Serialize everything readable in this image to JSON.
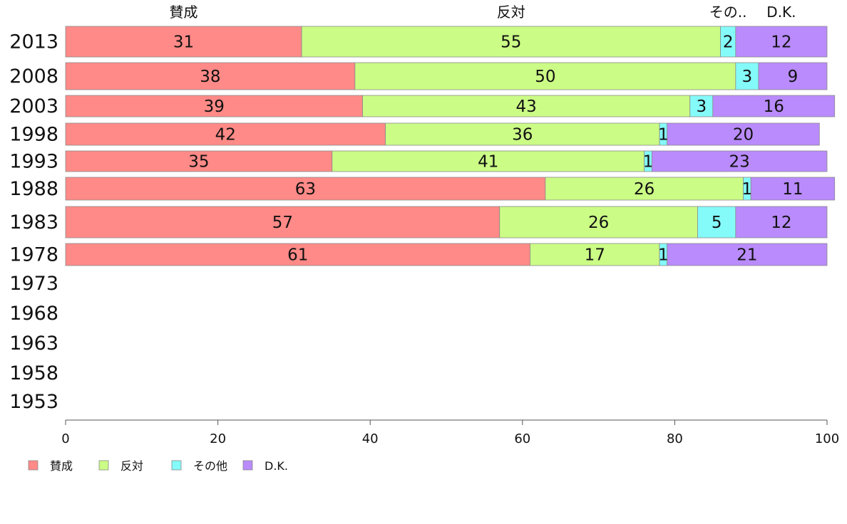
{
  "chart_data": {
    "type": "bar",
    "orientation": "horizontal",
    "stacked": true,
    "categories": [
      "2013",
      "2008",
      "2003",
      "1998",
      "1993",
      "1988",
      "1983",
      "1978",
      "1973",
      "1968",
      "1963",
      "1958",
      "1953"
    ],
    "series": [
      {
        "name": "賛成",
        "color": "#ff8a87",
        "values": [
          31,
          38,
          39,
          42,
          35,
          63,
          57,
          61,
          null,
          null,
          null,
          null,
          null
        ]
      },
      {
        "name": "反対",
        "color": "#cbfc86",
        "values": [
          55,
          50,
          43,
          36,
          41,
          26,
          26,
          17,
          null,
          null,
          null,
          null,
          null
        ]
      },
      {
        "name": "その他",
        "color": "#84faf9",
        "values": [
          2,
          3,
          3,
          1,
          1,
          1,
          5,
          1,
          null,
          null,
          null,
          null,
          null
        ]
      },
      {
        "name": "D.K.",
        "color": "#b98bfc",
        "values": [
          12,
          9,
          16,
          20,
          23,
          11,
          12,
          21,
          null,
          null,
          null,
          null,
          null
        ]
      }
    ],
    "column_headers": [
      "賛成",
      "反対",
      "その..",
      "D.K."
    ],
    "xlim": [
      0,
      100
    ],
    "xticks": [
      0,
      20,
      40,
      60,
      80,
      100
    ],
    "grid": false,
    "legend_position": "bottom-left"
  }
}
